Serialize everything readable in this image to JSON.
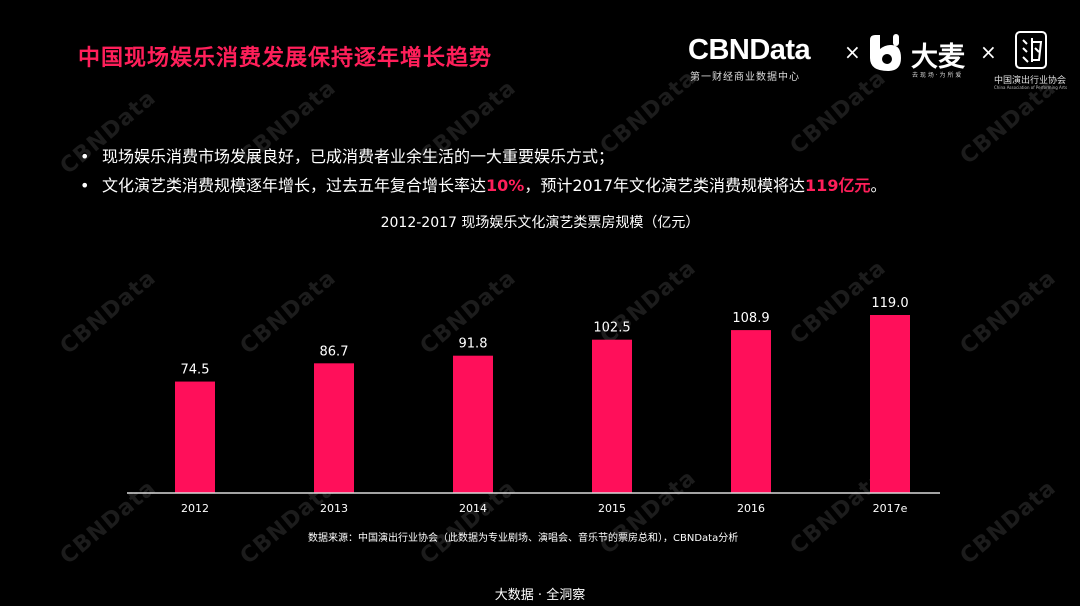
{
  "slide": {
    "title": "中国现场娱乐消费发展保持逐年增长趋势",
    "watermark_text": "CBNData"
  },
  "logos": {
    "cbn_name": "CBNData",
    "cbn_tagline": "第一财经商业数据中心",
    "separator": "×",
    "damai_name": "大麦",
    "damai_tagline": "去 现 场 · 为 所 爱",
    "caa_name": "中国演出行业协会",
    "caa_subtitle": "China Association of Performing Arts"
  },
  "bullets": [
    {
      "marker": "•",
      "text": "现场娱乐消费市场发展良好，已成消费者业余生活的一大重要娱乐方式；"
    },
    {
      "marker": "•",
      "parts": [
        {
          "text": "文化演艺类消费规模逐年增长，过去五年复合增长率达"
        },
        {
          "text": "10%",
          "highlight": true
        },
        {
          "text": "，预计2017年文化演艺类消费规模将达"
        },
        {
          "text": "119亿元",
          "highlight": true
        },
        {
          "text": "。"
        }
      ]
    }
  ],
  "chart_data": {
    "type": "bar",
    "title": "2012-2017  现场娱乐文化演艺类票房规模（亿元）",
    "categories": [
      "2012",
      "2013",
      "2014",
      "2015",
      "2016",
      "2017e"
    ],
    "values": [
      74.5,
      86.7,
      91.8,
      102.5,
      108.9,
      119.0
    ],
    "data_labels": [
      "74.5",
      "86.7",
      "91.8",
      "102.5",
      "108.9",
      "119.0"
    ],
    "ylim": [
      0,
      119.0
    ],
    "grid": false,
    "bar_color": "#ff0f5a",
    "axis_color": "#d9d9d9"
  },
  "source": "数据来源：中国演出行业协会（此数据为专业剧场、演唱会、音乐节的票房总和），CBNData分析",
  "footer": "大数据 · 全洞察",
  "colors": {
    "accent": "#ff1f5a",
    "background": "#000000"
  }
}
